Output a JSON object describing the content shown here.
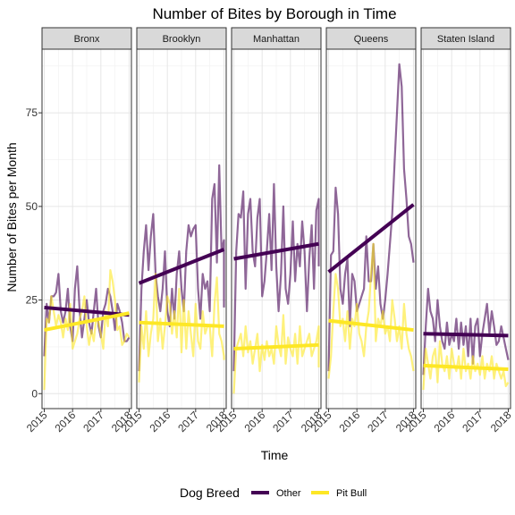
{
  "chart_data": {
    "type": "line",
    "title": "Number of Bites by Borough in Time",
    "xlabel": "Time",
    "ylabel": "Number of Bites per Month",
    "xlim": [
      2014.92,
      2018.08
    ],
    "ylim": [
      -4,
      92
    ],
    "x_ticks": [
      2015,
      2016,
      2017,
      2018
    ],
    "y_ticks": [
      0,
      25,
      50,
      75
    ],
    "grid": true,
    "legend": {
      "position": "bottom",
      "title": "Dog Breed",
      "entries": [
        {
          "label": "Other",
          "color": "#440154"
        },
        {
          "label": "Pit Bull",
          "color": "#FDE725"
        }
      ]
    },
    "colors": {
      "Other": "#440154",
      "Pit Bull": "#FDE725"
    },
    "x_start": 2015.0,
    "x_step": 0.08333,
    "panels": [
      {
        "name": "Bronx",
        "series": [
          {
            "name": "Other",
            "values": [
              10,
              24,
              19,
              26,
              26,
              27,
              32,
              22,
              19,
              22,
              28,
              18,
              14,
              28,
              34,
              22,
              15,
              20,
              25,
              19,
              16,
              22,
              28,
              18,
              15,
              22,
              24,
              28,
              26,
              22,
              17,
              24,
              22,
              19,
              14,
              14,
              15
            ]
          },
          {
            "name": "Pit Bull",
            "values": [
              1,
              20,
              19,
              26,
              22,
              18,
              21,
              19,
              15,
              20,
              17,
              24,
              12,
              14,
              16,
              20,
              22,
              26,
              18,
              13,
              17,
              14,
              20,
              19,
              16,
              12,
              22,
              18,
              33,
              30,
              25,
              17,
              18,
              13,
              14,
              16,
              15
            ]
          }
        ],
        "trend": {
          "Other": {
            "start": 23,
            "end": 21
          },
          "Pit Bull": {
            "start": 17,
            "end": 21.5
          }
        }
      },
      {
        "name": "Brooklyn",
        "series": [
          {
            "name": "Other",
            "values": [
              6,
              28,
              38,
              45,
              33,
              42,
              48,
              32,
              26,
              22,
              28,
              38,
              22,
              18,
              28,
              20,
              32,
              38,
              28,
              22,
              38,
              45,
              42,
              44,
              45,
              28,
              20,
              32,
              28,
              30,
              22,
              52,
              56,
              35,
              61,
              38,
              41,
              23
            ]
          },
          {
            "name": "Pit Bull",
            "values": [
              3,
              18,
              12,
              22,
              10,
              16,
              20,
              32,
              14,
              20,
              12,
              18,
              26,
              24,
              16,
              22,
              15,
              28,
              11,
              25,
              12,
              22,
              16,
              10,
              24,
              14,
              12,
              22,
              16,
              18,
              18,
              10,
              24,
              31,
              16,
              14,
              10,
              9
            ]
          }
        ],
        "trend": {
          "Other": {
            "start": 29.5,
            "end": 38.5
          },
          "Pit Bull": {
            "start": 19,
            "end": 18
          }
        }
      },
      {
        "name": "Manhattan",
        "series": [
          {
            "name": "Other",
            "values": [
              6,
              38,
              48,
              47,
              54,
              28,
              48,
              52,
              38,
              34,
              47,
              52,
              26,
              30,
              38,
              48,
              33,
              56,
              34,
              22,
              32,
              50,
              28,
              24,
              32,
              46,
              30,
              40,
              34,
              46,
              38,
              22,
              36,
              45,
              28,
              49,
              52,
              34
            ]
          },
          {
            "name": "Pit Bull",
            "values": [
              0,
              12,
              14,
              16,
              10,
              18,
              11,
              14,
              8,
              12,
              16,
              6,
              13,
              9,
              14,
              10,
              12,
              8,
              18,
              13,
              10,
              21,
              8,
              15,
              12,
              10,
              16,
              8,
              18,
              10,
              12,
              14,
              16,
              10,
              12,
              14,
              18,
              7
            ]
          }
        ],
        "trend": {
          "Other": {
            "start": 36,
            "end": 40
          },
          "Pit Bull": {
            "start": 12,
            "end": 13
          }
        }
      },
      {
        "name": "Queens",
        "series": [
          {
            "name": "Other",
            "values": [
              6,
              37,
              38,
              55,
              48,
              28,
              24,
              32,
              36,
              18,
              32,
              30,
              22,
              24,
              26,
              28,
              42,
              30,
              30,
              40,
              28,
              34,
              24,
              20,
              25,
              32,
              40,
              48,
              62,
              75,
              88,
              82,
              60,
              52,
              42,
              40,
              35
            ]
          },
          {
            "name": "Pit Bull",
            "values": [
              4,
              10,
              22,
              32,
              28,
              18,
              20,
              14,
              22,
              12,
              20,
              18,
              24,
              16,
              14,
              10,
              18,
              22,
              32,
              40,
              14,
              20,
              18,
              22,
              16,
              18,
              14,
              25,
              20,
              14,
              18,
              12,
              24,
              16,
              12,
              10,
              6
            ]
          }
        ],
        "trend": {
          "Other": {
            "start": 32.5,
            "end": 50.5
          },
          "Pit Bull": {
            "start": 19.5,
            "end": 17
          }
        }
      },
      {
        "name": "Staten Island",
        "series": [
          {
            "name": "Other",
            "values": [
              5,
              18,
              28,
              22,
              20,
              14,
              25,
              18,
              14,
              12,
              19,
              13,
              16,
              14,
              20,
              12,
              19,
              13,
              18,
              10,
              20,
              8,
              18,
              20,
              10,
              16,
              20,
              24,
              16,
              22,
              18,
              13,
              14,
              18,
              15,
              12,
              9
            ]
          },
          {
            "name": "Pit Bull",
            "values": [
              1,
              12,
              8,
              4,
              10,
              12,
              3,
              14,
              8,
              6,
              10,
              4,
              12,
              8,
              6,
              10,
              4,
              12,
              6,
              8,
              4,
              10,
              6,
              8,
              5,
              10,
              4,
              8,
              6,
              10,
              4,
              8,
              6,
              4,
              6,
              2,
              3
            ]
          }
        ],
        "trend": {
          "Other": {
            "start": 16,
            "end": 15.5
          },
          "Pit Bull": {
            "start": 7.5,
            "end": 6.5
          }
        }
      }
    ]
  }
}
